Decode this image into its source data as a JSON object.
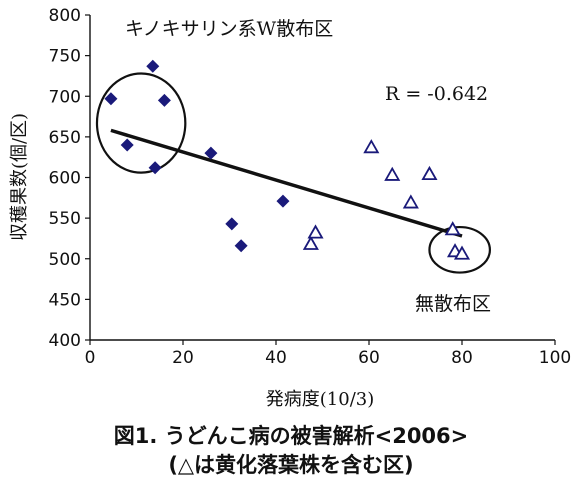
{
  "chart_data": {
    "type": "scatter",
    "title": "",
    "xlabel": "発病度(10/3)",
    "ylabel": "収穫果数(個/区)",
    "xlim": [
      0,
      100
    ],
    "ylim": [
      400,
      800
    ],
    "xticks": [
      "0",
      "20",
      "40",
      "60",
      "80",
      "100"
    ],
    "yticks": [
      "400",
      "450",
      "500",
      "550",
      "600",
      "650",
      "700",
      "750",
      "800"
    ],
    "grid": false,
    "series": [
      {
        "marker": "diamond-filled",
        "color": "#1a1a7a",
        "x": [
          4.5,
          8,
          13.5,
          14,
          16,
          26,
          30.5,
          32.5,
          41.5
        ],
        "y": [
          697,
          640,
          737,
          612,
          695,
          630,
          543,
          516,
          571
        ]
      },
      {
        "marker": "triangle-open",
        "color": "#1a1a7a",
        "x": [
          47.5,
          48.5,
          60.5,
          65,
          69,
          73,
          78,
          78.5,
          80
        ],
        "y": [
          518,
          532,
          637,
          603,
          569,
          604,
          536,
          509,
          506
        ]
      }
    ],
    "trendline": {
      "x": [
        4.5,
        80
      ],
      "y": [
        658,
        528
      ]
    },
    "annotations": [
      {
        "id": "sprayed",
        "text": "キノキサリン系W散布区",
        "ellipse_center": [
          11,
          667
        ],
        "ellipse_radius": [
          9.5,
          61
        ]
      },
      {
        "id": "unsprayed",
        "text": "無散布区",
        "ellipse_center": [
          79.5,
          511
        ],
        "ellipse_radius": [
          6.5,
          28
        ]
      },
      {
        "id": "r-value",
        "text": "R = -0.642"
      }
    ]
  },
  "caption": {
    "line1": "図1. うどんこ病の被害解析<2006>",
    "line2": "(△は黄化落葉株を含む区)"
  }
}
